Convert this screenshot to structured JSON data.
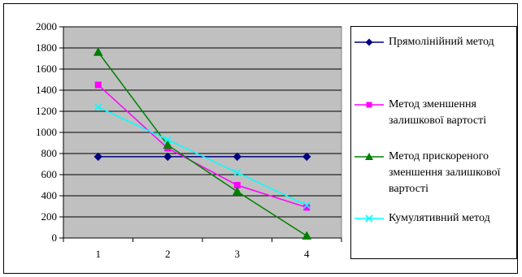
{
  "chart_data": {
    "type": "line",
    "title": "",
    "xlabel": "",
    "ylabel": "",
    "x": [
      1,
      2,
      3,
      4
    ],
    "xtick_labels": [
      "1",
      "2",
      "3",
      "4"
    ],
    "ylim": [
      0,
      2000
    ],
    "yticks": [
      0,
      200,
      400,
      600,
      800,
      1000,
      1200,
      1400,
      1600,
      1800,
      2000
    ],
    "grid": true,
    "legend_position": "right",
    "plot_background": "#c0c0c0",
    "series": [
      {
        "name": "Прямолінійний метод",
        "values": [
          770,
          770,
          770,
          770
        ],
        "color": "#000080",
        "marker": "diamond"
      },
      {
        "name": "Метод зменшення залишкової вартості",
        "values": [
          1450,
          850,
          500,
          290
        ],
        "color": "#ff00ff",
        "marker": "square"
      },
      {
        "name": "Метод прискореного зменшення залишкової вартості",
        "values": [
          1760,
          880,
          440,
          20
        ],
        "color": "#008000",
        "marker": "triangle"
      },
      {
        "name": "Кумулятивний метод",
        "values": [
          1240,
          930,
          620,
          310
        ],
        "color": "#00ffff",
        "marker": "x"
      }
    ]
  }
}
